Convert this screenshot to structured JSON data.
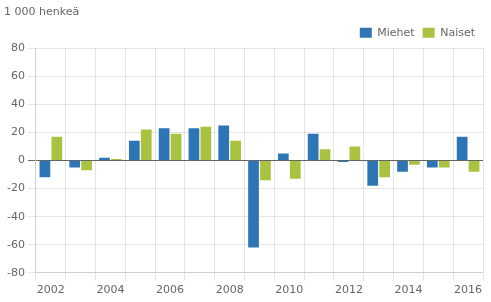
{
  "chart_data": {
    "type": "bar",
    "ylabel": "1 000 henkeä",
    "categories": [
      "2002",
      null,
      "2004",
      null,
      "2006",
      null,
      "2008",
      null,
      "2010",
      null,
      "2012",
      null,
      "2014",
      null,
      "2016"
    ],
    "series": [
      {
        "name": "Miehet",
        "color": "#2e75b6",
        "values": [
          -12,
          -5,
          2,
          14,
          23,
          23,
          25,
          -62,
          5,
          19,
          -1,
          -18,
          -8,
          -5,
          17
        ]
      },
      {
        "name": "Naiset",
        "color": "#a9c23f",
        "values": [
          17,
          -7,
          1,
          22,
          19,
          24,
          14,
          -14,
          -13,
          8,
          10,
          -12,
          -3,
          -5,
          -8
        ]
      }
    ],
    "ylim": [
      -80,
      80
    ],
    "yticks": [
      -80,
      -60,
      -40,
      -20,
      0,
      20,
      40,
      60,
      80
    ],
    "grid": true,
    "legend": "upper right"
  }
}
